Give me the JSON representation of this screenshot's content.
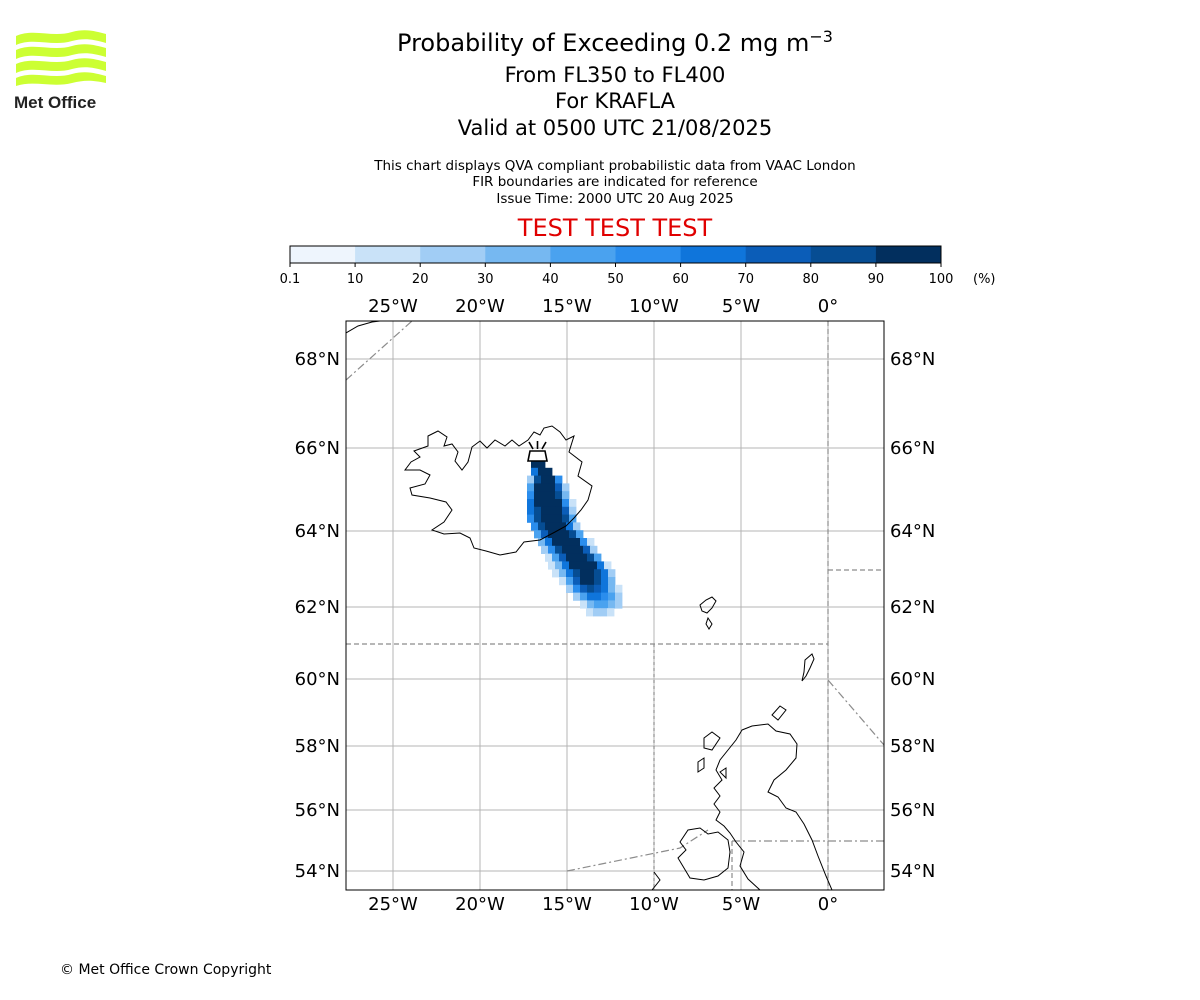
{
  "logo": {
    "name": "Met Office",
    "colors": {
      "waves": "#ccff33",
      "text": "#222222"
    }
  },
  "title": {
    "line1_prefix": "Probability of Exceeding 0.2 mg m",
    "line1_exponent": "−3",
    "line2": "From FL350 to FL400",
    "line3": "For KRAFLA",
    "line4": "Valid at 0500 UTC 21/08/2025"
  },
  "notes": {
    "line1": "This chart displays QVA compliant probabilistic data from VAAC London",
    "line2": "FIR boundaries are indicated for reference",
    "line3": "Issue Time: 2000 UTC 20 Aug 2025"
  },
  "banner": {
    "text": "TEST TEST TEST",
    "color": "#e00000"
  },
  "colorbar": {
    "ticks": [
      "0.1",
      "10",
      "20",
      "30",
      "40",
      "50",
      "60",
      "70",
      "80",
      "90",
      "100"
    ],
    "unit": "(%)",
    "colors": [
      "#eef5fd",
      "#c9e2f8",
      "#a1cdf5",
      "#76b8f1",
      "#4aa2ef",
      "#2a8ded",
      "#0f75db",
      "#0b5db8",
      "#064d93",
      "#022f5e"
    ]
  },
  "map": {
    "lon_labels": [
      "25°W",
      "20°W",
      "15°W",
      "10°W",
      "5°W",
      "0°"
    ],
    "lat_labels": [
      "68°N",
      "66°N",
      "64°N",
      "62°N",
      "60°N",
      "58°N",
      "56°N",
      "54°N"
    ],
    "volcano": {
      "name": "KRAFLA",
      "marker": "volcano-icon"
    }
  },
  "footer": {
    "copyright": "© Met Office Crown Copyright"
  }
}
